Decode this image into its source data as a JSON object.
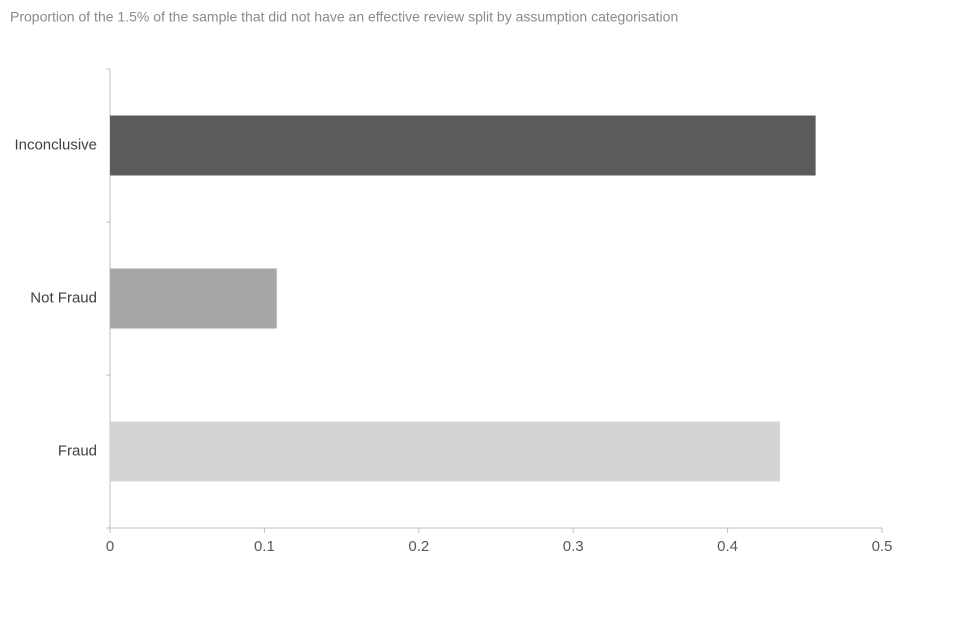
{
  "chart_data": {
    "type": "hbar",
    "title": "Proportion of the 1.5% of the sample that did not have an effective review split by assumption categorisation",
    "categories": [
      "Inconclusive",
      "Not Fraud",
      "Fraud"
    ],
    "values": [
      0.457,
      0.108,
      0.434
    ],
    "colors": [
      "#5a5b5d",
      "#a7a7aa",
      "#d3d4d6"
    ],
    "xlim": [
      0,
      0.5
    ],
    "xticks": [
      0,
      0.1,
      0.2,
      0.3,
      0.4,
      0.5
    ],
    "grid": false
  }
}
